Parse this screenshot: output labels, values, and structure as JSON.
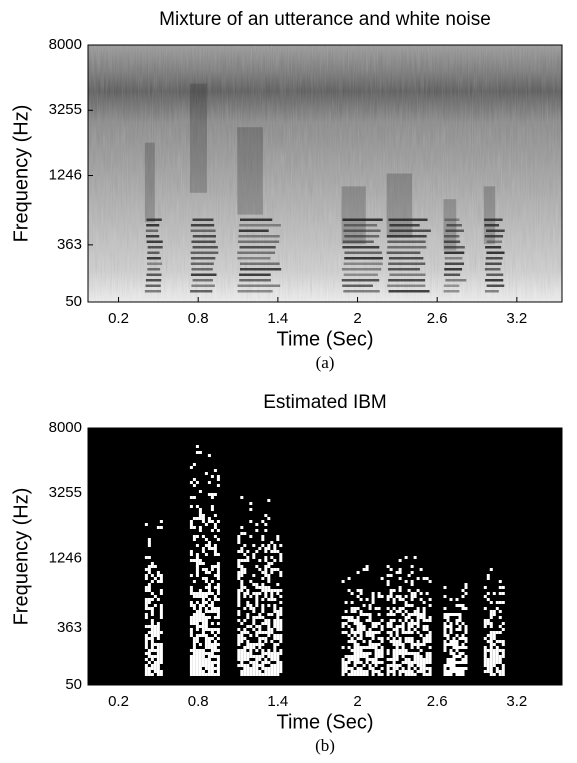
{
  "chart_data": [
    {
      "type": "spectrogram",
      "title": "Mixture of an utterance and white noise",
      "xlabel": "Time (Sec)",
      "ylabel": "Frequency (Hz)",
      "caption": "(a)",
      "xlim": [
        -0.03,
        3.54
      ],
      "xticks": [
        0.2,
        0.8,
        1.4,
        2,
        2.6,
        3.2
      ],
      "ylim": [
        50,
        8000
      ],
      "yticks": [
        50,
        363,
        1246,
        3255,
        8000
      ],
      "yscale": "erb"
    },
    {
      "type": "mask",
      "title": "Estimated IBM",
      "xlabel": "Time (Sec)",
      "ylabel": "Frequency (Hz)",
      "caption": "(b)",
      "xlim": [
        -0.03,
        3.54
      ],
      "xticks": [
        0.2,
        0.8,
        1.4,
        2,
        2.6,
        3.2
      ],
      "ylim": [
        50,
        8000
      ],
      "yticks": [
        50,
        363,
        1246,
        3255,
        8000
      ],
      "yscale": "erb"
    }
  ]
}
